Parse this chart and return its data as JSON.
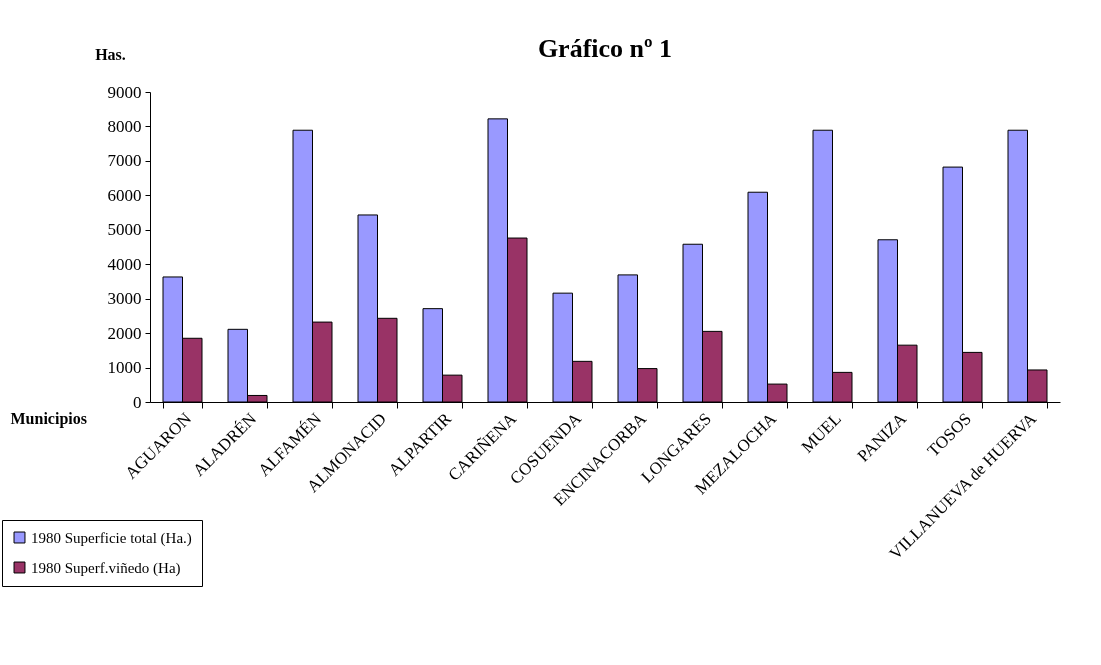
{
  "chart_data": {
    "type": "bar",
    "title": "Gráfico nº 1",
    "ylabel": "Has.",
    "xlabel": "Municipios",
    "categories": [
      "AGUARON",
      "ALADRÉN",
      "ALFAMÉN",
      "ALMONACID",
      "ALPARTIR",
      "CARIÑENA",
      "COSUENDA",
      "ENCINACORBA",
      "LONGARES",
      "MEZALOCHA",
      "MUEL",
      "PANIZA",
      "TOSOS",
      "VILLANUEVA de HUERVA"
    ],
    "series": [
      {
        "name": "1980 Superficie total (Ha.)",
        "color": "#9999ff",
        "values": [
          3630,
          2110,
          7890,
          5430,
          2710,
          8220,
          3160,
          3690,
          4580,
          6090,
          7890,
          4710,
          6820,
          7890
        ]
      },
      {
        "name": "1980 Superf.viñedo (Ha)",
        "color": "#993366",
        "values": [
          1850,
          190,
          2320,
          2430,
          780,
          4760,
          1180,
          970,
          2050,
          520,
          860,
          1650,
          1440,
          930
        ]
      }
    ],
    "ylim": [
      0,
      9000
    ],
    "yticks": [
      0,
      1000,
      2000,
      3000,
      4000,
      5000,
      6000,
      7000,
      8000,
      9000
    ],
    "grid": false,
    "legend": "bottom left"
  }
}
